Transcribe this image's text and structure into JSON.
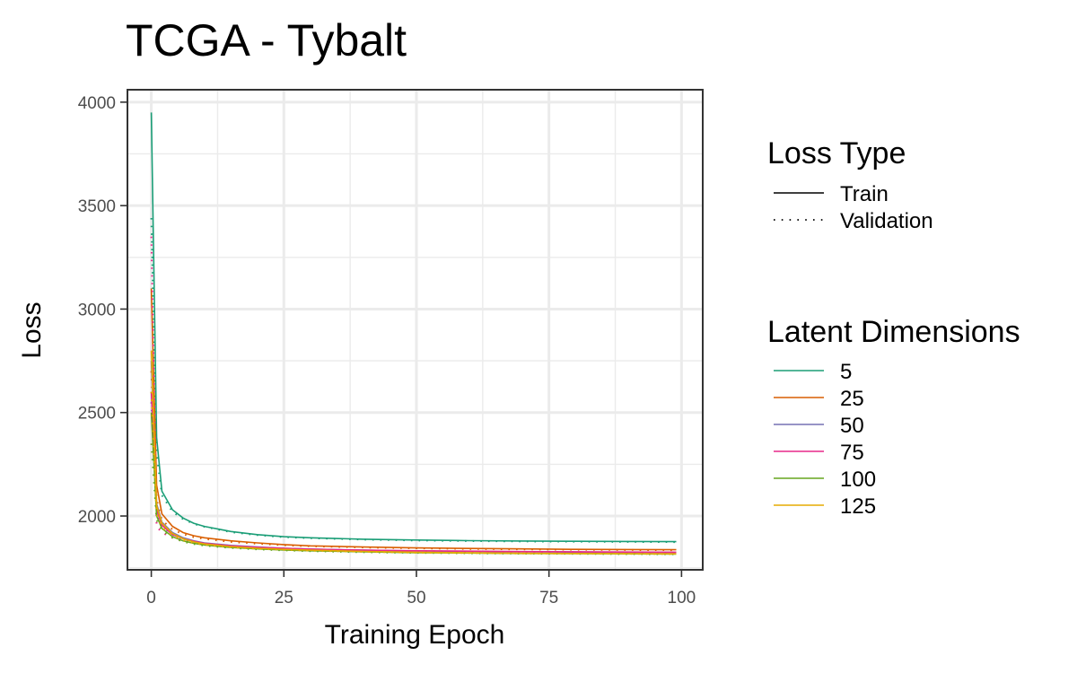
{
  "chart_data": {
    "type": "line",
    "title": "TCGA - Tybalt",
    "xlabel": "Training Epoch",
    "ylabel": "Loss",
    "xlim": [
      -4.5,
      104
    ],
    "ylim": [
      1740,
      4060
    ],
    "x_ticks": [
      0,
      25,
      50,
      75,
      100
    ],
    "y_ticks": [
      2000,
      2500,
      3000,
      3500,
      4000
    ],
    "grid": true,
    "legend_position": "right",
    "loss_type_legend": {
      "title": "Loss Type",
      "entries": [
        {
          "label": "Train",
          "linetype": "solid"
        },
        {
          "label": "Validation",
          "linetype": "dotted"
        }
      ]
    },
    "latent_legend": {
      "title": "Latent Dimensions"
    },
    "x": [
      0,
      1,
      2,
      4,
      6,
      8,
      10,
      15,
      20,
      25,
      30,
      40,
      50,
      60,
      70,
      80,
      90,
      99
    ],
    "series": [
      {
        "name": "5",
        "color": "#1b9e77",
        "train": [
          3950,
          2380,
          2120,
          2030,
          1990,
          1965,
          1950,
          1925,
          1910,
          1900,
          1895,
          1888,
          1884,
          1881,
          1879,
          1878,
          1877,
          1876
        ],
        "validation": [
          3440,
          2300,
          2100,
          2020,
          1985,
          1962,
          1948,
          1922,
          1908,
          1898,
          1893,
          1886,
          1882,
          1879,
          1877,
          1876,
          1875,
          1874
        ]
      },
      {
        "name": "25",
        "color": "#d95f02",
        "train": [
          3100,
          2150,
          2010,
          1950,
          1920,
          1905,
          1895,
          1880,
          1870,
          1862,
          1856,
          1850,
          1846,
          1843,
          1841,
          1839,
          1838,
          1837
        ],
        "validation": [
          2700,
          2080,
          1980,
          1935,
          1912,
          1898,
          1889,
          1875,
          1866,
          1859,
          1854,
          1848,
          1844,
          1841,
          1839,
          1837,
          1836,
          1835
        ]
      },
      {
        "name": "50",
        "color": "#7570b3",
        "train": [
          2750,
          2060,
          1970,
          1920,
          1895,
          1880,
          1870,
          1858,
          1850,
          1844,
          1840,
          1835,
          1831,
          1829,
          1827,
          1826,
          1825,
          1824
        ],
        "validation": [
          2550,
          2020,
          1950,
          1910,
          1888,
          1875,
          1866,
          1855,
          1847,
          1842,
          1838,
          1833,
          1830,
          1828,
          1826,
          1825,
          1824,
          1823
        ]
      },
      {
        "name": "75",
        "color": "#e7298a",
        "train": [
          2600,
          2030,
          1955,
          1910,
          1890,
          1878,
          1868,
          1856,
          1849,
          1844,
          1840,
          1835,
          1832,
          1830,
          1828,
          1827,
          1826,
          1825
        ],
        "validation": [
          3350,
          1950,
          1920,
          1895,
          1880,
          1870,
          1862,
          1852,
          1846,
          1841,
          1837,
          1833,
          1830,
          1828,
          1826,
          1825,
          1824,
          1823
        ]
      },
      {
        "name": "100",
        "color": "#66a61e",
        "train": [
          2500,
          2000,
          1940,
          1900,
          1880,
          1868,
          1860,
          1848,
          1841,
          1836,
          1832,
          1827,
          1823,
          1821,
          1819,
          1818,
          1817,
          1816
        ],
        "validation": [
          2350,
          1980,
          1930,
          1895,
          1876,
          1865,
          1857,
          1846,
          1839,
          1834,
          1830,
          1825,
          1822,
          1820,
          1818,
          1817,
          1816,
          1815
        ]
      },
      {
        "name": "125",
        "color": "#e6ab02",
        "train": [
          2800,
          2050,
          1965,
          1915,
          1890,
          1875,
          1865,
          1852,
          1844,
          1839,
          1835,
          1829,
          1825,
          1822,
          1820,
          1819,
          1818,
          1817
        ],
        "validation": [
          2600,
          2010,
          1945,
          1905,
          1883,
          1870,
          1861,
          1849,
          1842,
          1837,
          1833,
          1827,
          1823,
          1821,
          1819,
          1818,
          1817,
          1816
        ]
      }
    ]
  }
}
